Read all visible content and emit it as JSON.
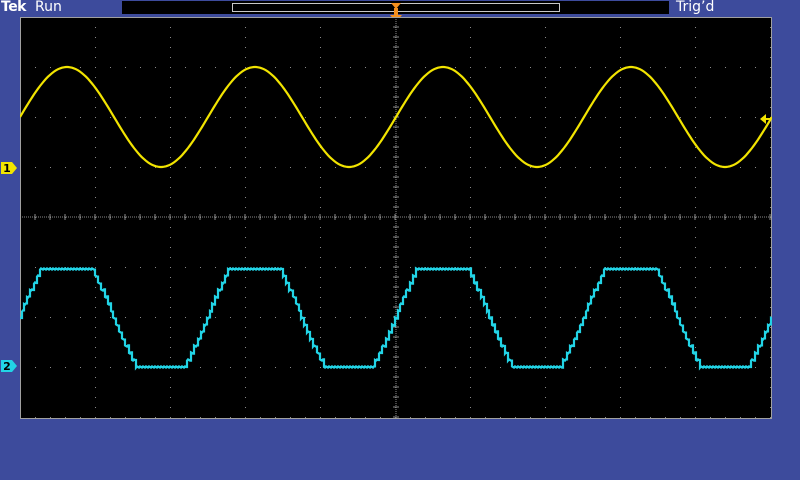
{
  "header": {
    "brand": "Tek",
    "acquisition_state": "Run",
    "trigger_state": "Trig’d"
  },
  "trigger_marker": {
    "label": "T"
  },
  "channels": [
    {
      "label": "1",
      "waveform": "sine",
      "color": "#f2e400",
      "cycles_on_screen": 4
    },
    {
      "label": "2",
      "waveform": "stepped-trapezoid",
      "color": "#22d4e6",
      "cycles_on_screen": 4
    }
  ],
  "colors": {
    "background": "#3d4b9c",
    "graticule": "#000000",
    "grid_dots": "#8a8a8a",
    "trigger": "#f5901e"
  }
}
